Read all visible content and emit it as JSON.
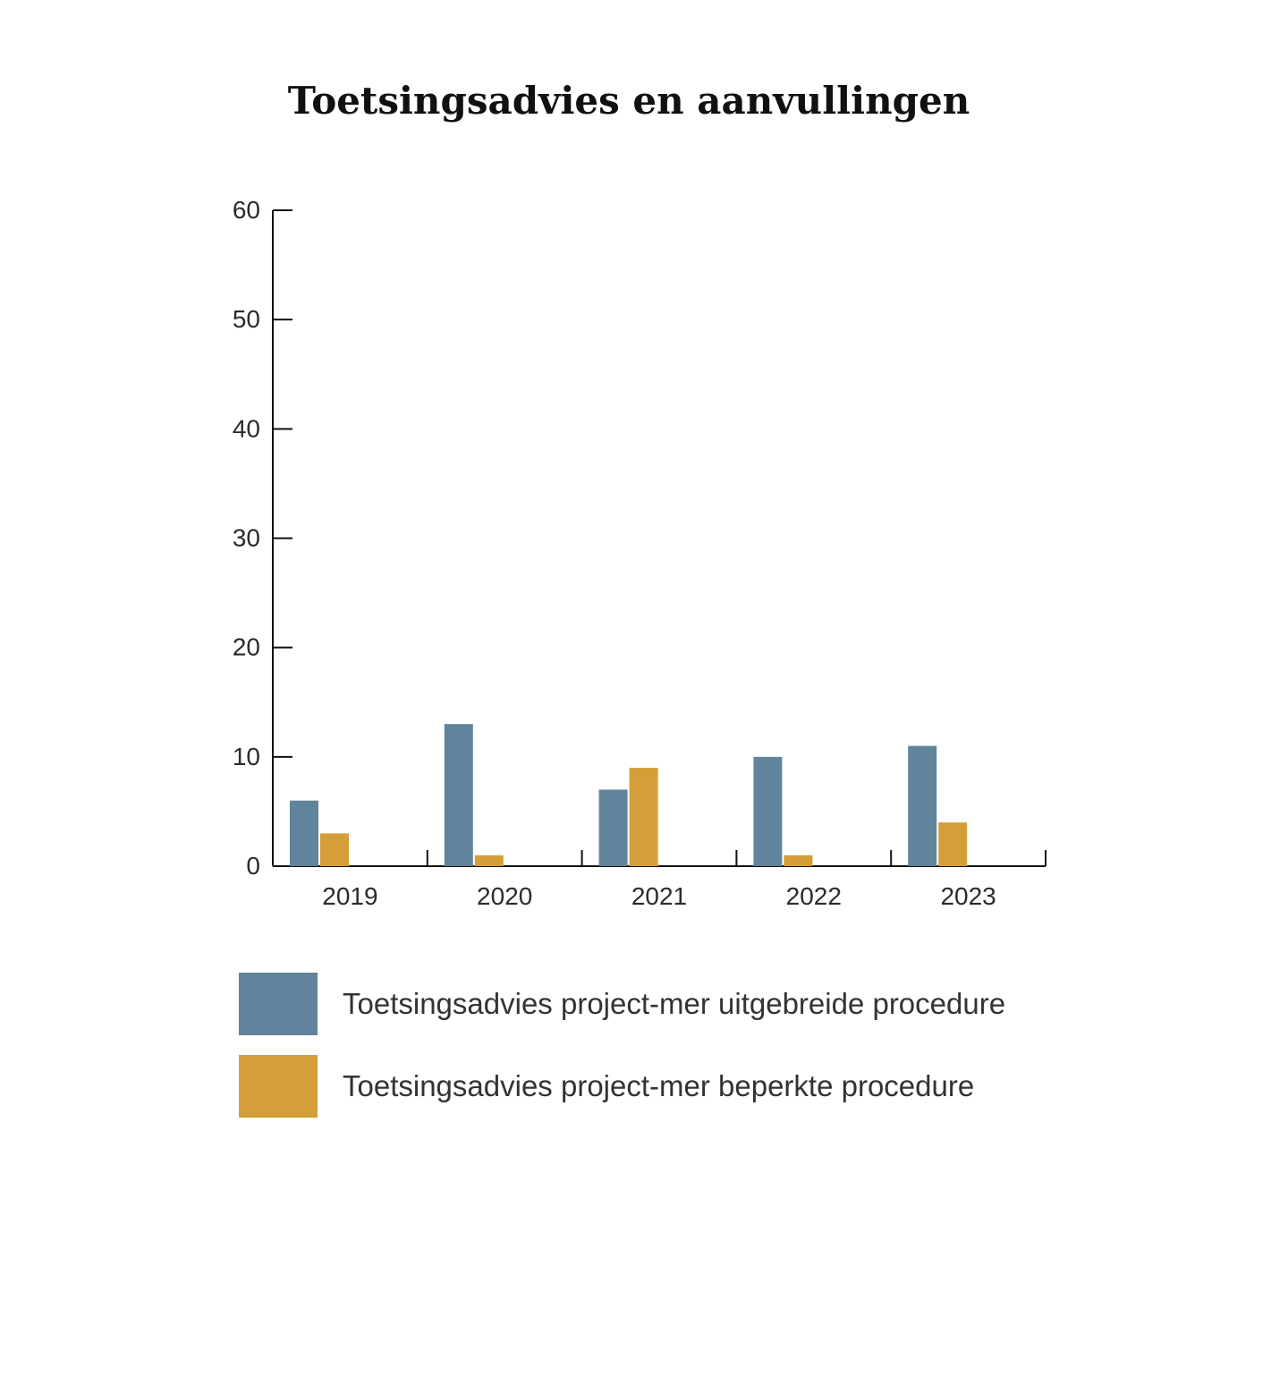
{
  "chart_data": {
    "type": "bar",
    "title": "Toetsingsadvies en aanvullingen",
    "xlabel": "",
    "ylabel": "",
    "categories": [
      "2019",
      "2020",
      "2021",
      "2022",
      "2023"
    ],
    "series": [
      {
        "name": "Toetsingsadvies project-mer uitgebreide procedure",
        "color": "#5f849b",
        "values": [
          6,
          13,
          7,
          10,
          11
        ]
      },
      {
        "name": "Toetsingsadvies project-mer beperkte procedure",
        "color": "#d49f38",
        "values": [
          3,
          1,
          9,
          1,
          4
        ]
      }
    ],
    "ylim": [
      0,
      60
    ],
    "yticks": [
      "0",
      "10",
      "20",
      "30",
      "40",
      "50",
      "60"
    ],
    "grid": false,
    "legend_position": "bottom"
  }
}
